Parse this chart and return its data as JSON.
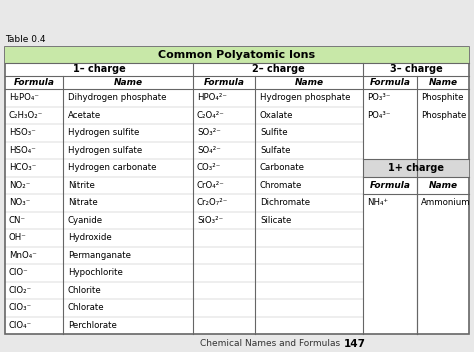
{
  "title": "Common Polyatomic Ions",
  "title_bg": "#c8e8a8",
  "table_bg": "#ffffff",
  "border_color": "#666666",
  "table_label": "Table 0.4",
  "footer_text": "Chemical Names and Formulas",
  "footer_page": "147",
  "col1_minus_header": "1– charge",
  "col2_minus_header": "2– charge",
  "col3_minus_header": "3– charge",
  "col1_plus_header": "1+ charge",
  "col1_minus_rows": [
    [
      "H₂PO₄⁻",
      "Dihydrogen phosphate"
    ],
    [
      "C₂H₃O₂⁻",
      "Acetate"
    ],
    [
      "HSO₃⁻",
      "Hydrogen sulfite"
    ],
    [
      "HSO₄⁻",
      "Hydrogen sulfate"
    ],
    [
      "HCO₃⁻",
      "Hydrogen carbonate"
    ],
    [
      "NO₂⁻",
      "Nitrite"
    ],
    [
      "NO₃⁻",
      "Nitrate"
    ],
    [
      "CN⁻",
      "Cyanide"
    ],
    [
      "OH⁻",
      "Hydroxide"
    ],
    [
      "MnO₄⁻",
      "Permanganate"
    ],
    [
      "ClO⁻",
      "Hypochlorite"
    ],
    [
      "ClO₂⁻",
      "Chlorite"
    ],
    [
      "ClO₃⁻",
      "Chlorate"
    ],
    [
      "ClO₄⁻",
      "Perchlorate"
    ]
  ],
  "col2_minus_rows": [
    [
      "HPO₄²⁻",
      "Hydrogen phosphate"
    ],
    [
      "C₂O₄²⁻",
      "Oxalate"
    ],
    [
      "SO₃²⁻",
      "Sulfite"
    ],
    [
      "SO₄²⁻",
      "Sulfate"
    ],
    [
      "CO₃²⁻",
      "Carbonate"
    ],
    [
      "CrO₄²⁻",
      "Chromate"
    ],
    [
      "Cr₂O₇²⁻",
      "Dichromate"
    ],
    [
      "SiO₃²⁻",
      "Silicate"
    ]
  ],
  "col3_minus_rows": [
    [
      "PO₃³⁻",
      "Phosphite"
    ],
    [
      "PO₄³⁻",
      "Phosphate"
    ]
  ],
  "col1_plus_rows": [
    [
      "NH₄⁺",
      "Ammonium"
    ]
  ],
  "plus_header_bg": "#d8d8d8",
  "fig_bg": "#e8e8e8"
}
